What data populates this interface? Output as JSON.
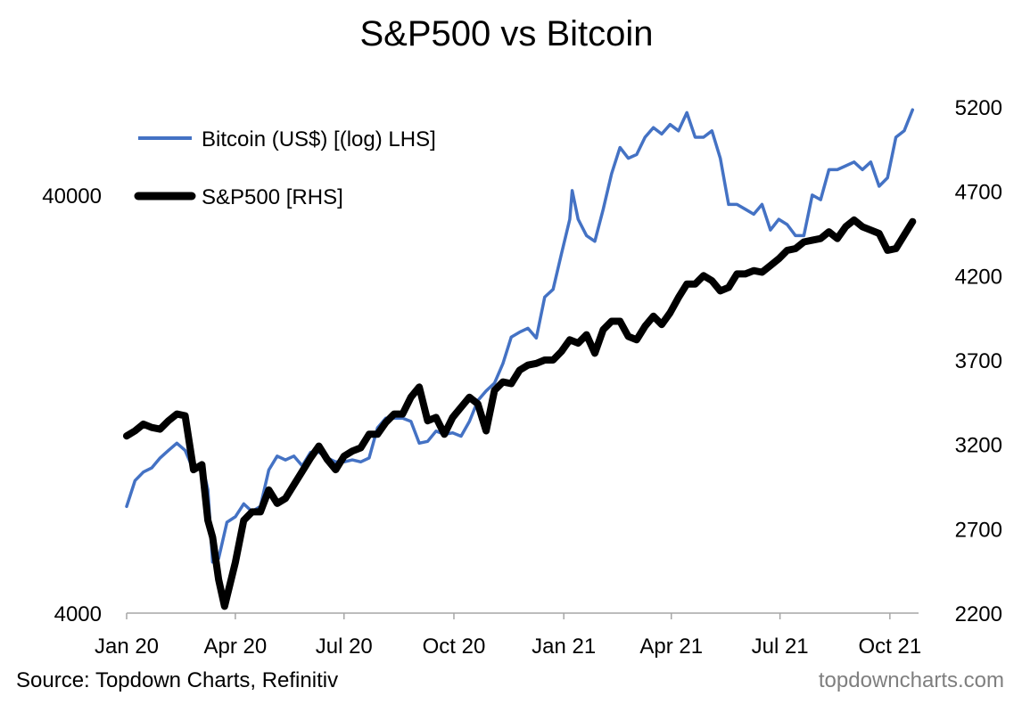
{
  "chart_data": {
    "type": "line",
    "title": "S&P500 vs Bitcoin",
    "source": "Source: Topdown Charts, Refinitiv",
    "watermark": "topdowncharts.com",
    "x_ticks": [
      "Jan 20",
      "Apr 20",
      "Jul 20",
      "Oct 20",
      "Jan 21",
      "Apr 21",
      "Jul 21",
      "Oct 21"
    ],
    "y_left": {
      "scale": "log",
      "ylim": [
        4000,
        65000
      ],
      "ticks": [
        4000,
        40000
      ]
    },
    "y_right": {
      "scale": "linear",
      "ylim": [
        2200,
        5200
      ],
      "ticks": [
        2200,
        2700,
        3200,
        3700,
        4200,
        4700,
        5200
      ]
    },
    "legend_position": "top-left",
    "grid": false,
    "series": [
      {
        "name": "Bitcoin (US$) [(log) LHS]",
        "axis": "left",
        "color": "#4472c4",
        "x": [
          "2020-01-01",
          "2020-01-08",
          "2020-01-15",
          "2020-01-22",
          "2020-01-29",
          "2020-02-05",
          "2020-02-12",
          "2020-02-19",
          "2020-02-26",
          "2020-03-04",
          "2020-03-09",
          "2020-03-13",
          "2020-03-18",
          "2020-03-25",
          "2020-04-01",
          "2020-04-08",
          "2020-04-15",
          "2020-04-22",
          "2020-04-29",
          "2020-05-06",
          "2020-05-13",
          "2020-05-20",
          "2020-05-27",
          "2020-06-03",
          "2020-06-10",
          "2020-06-17",
          "2020-06-24",
          "2020-07-01",
          "2020-07-08",
          "2020-07-15",
          "2020-07-22",
          "2020-07-29",
          "2020-08-05",
          "2020-08-12",
          "2020-08-19",
          "2020-08-26",
          "2020-09-02",
          "2020-09-09",
          "2020-09-16",
          "2020-09-23",
          "2020-09-30",
          "2020-10-07",
          "2020-10-14",
          "2020-10-21",
          "2020-10-28",
          "2020-11-04",
          "2020-11-11",
          "2020-11-18",
          "2020-11-25",
          "2020-12-02",
          "2020-12-09",
          "2020-12-16",
          "2020-12-23",
          "2020-12-30",
          "2021-01-06",
          "2021-01-08",
          "2021-01-13",
          "2021-01-20",
          "2021-01-27",
          "2021-02-03",
          "2021-02-10",
          "2021-02-17",
          "2021-02-24",
          "2021-03-03",
          "2021-03-10",
          "2021-03-17",
          "2021-03-24",
          "2021-03-31",
          "2021-04-07",
          "2021-04-14",
          "2021-04-21",
          "2021-04-28",
          "2021-05-05",
          "2021-05-12",
          "2021-05-19",
          "2021-05-26",
          "2021-06-02",
          "2021-06-09",
          "2021-06-16",
          "2021-06-23",
          "2021-06-30",
          "2021-07-07",
          "2021-07-14",
          "2021-07-21",
          "2021-07-28",
          "2021-08-04",
          "2021-08-11",
          "2021-08-18",
          "2021-08-25",
          "2021-09-01",
          "2021-09-08",
          "2021-09-15",
          "2021-09-22",
          "2021-09-29",
          "2021-10-06",
          "2021-10-13",
          "2021-10-20"
        ],
        "y": [
          7200,
          8300,
          8700,
          8900,
          9400,
          9800,
          10200,
          9800,
          8800,
          9100,
          7900,
          5300,
          5400,
          6600,
          6800,
          7300,
          7000,
          7200,
          8800,
          9500,
          9300,
          9500,
          9000,
          9700,
          9700,
          9400,
          9200,
          9200,
          9300,
          9200,
          9400,
          11100,
          11700,
          11700,
          11700,
          11500,
          10200,
          10300,
          10900,
          10700,
          10800,
          10600,
          11500,
          12900,
          13600,
          14200,
          15800,
          18300,
          18800,
          19200,
          18200,
          22800,
          23800,
          28900,
          35000,
          41000,
          35000,
          32000,
          31000,
          37000,
          45000,
          52000,
          49000,
          50000,
          55000,
          58000,
          56000,
          59000,
          57000,
          63000,
          55000,
          55000,
          57000,
          49000,
          38000,
          38000,
          37000,
          36000,
          38000,
          33000,
          35000,
          34000,
          32000,
          32000,
          40000,
          39000,
          46000,
          46000,
          47000,
          48000,
          46000,
          48000,
          42000,
          44000,
          55000,
          57000,
          64000
        ]
      },
      {
        "name": "S&P500 [RHS]",
        "axis": "right",
        "color": "#000000",
        "x": [
          "2020-01-01",
          "2020-01-08",
          "2020-01-15",
          "2020-01-22",
          "2020-01-29",
          "2020-02-05",
          "2020-02-12",
          "2020-02-19",
          "2020-02-26",
          "2020-03-04",
          "2020-03-09",
          "2020-03-13",
          "2020-03-18",
          "2020-03-23",
          "2020-04-01",
          "2020-04-08",
          "2020-04-15",
          "2020-04-22",
          "2020-04-29",
          "2020-05-06",
          "2020-05-13",
          "2020-05-20",
          "2020-05-27",
          "2020-06-03",
          "2020-06-10",
          "2020-06-17",
          "2020-06-24",
          "2020-07-01",
          "2020-07-08",
          "2020-07-15",
          "2020-07-22",
          "2020-07-29",
          "2020-08-05",
          "2020-08-12",
          "2020-08-19",
          "2020-08-26",
          "2020-09-02",
          "2020-09-09",
          "2020-09-16",
          "2020-09-23",
          "2020-09-30",
          "2020-10-07",
          "2020-10-14",
          "2020-10-21",
          "2020-10-28",
          "2020-11-04",
          "2020-11-11",
          "2020-11-18",
          "2020-11-25",
          "2020-12-02",
          "2020-12-09",
          "2020-12-16",
          "2020-12-23",
          "2020-12-30",
          "2021-01-06",
          "2021-01-13",
          "2021-01-20",
          "2021-01-27",
          "2021-02-03",
          "2021-02-10",
          "2021-02-17",
          "2021-02-24",
          "2021-03-03",
          "2021-03-10",
          "2021-03-17",
          "2021-03-24",
          "2021-03-31",
          "2021-04-07",
          "2021-04-14",
          "2021-04-21",
          "2021-04-28",
          "2021-05-05",
          "2021-05-12",
          "2021-05-19",
          "2021-05-26",
          "2021-06-02",
          "2021-06-09",
          "2021-06-16",
          "2021-06-23",
          "2021-06-30",
          "2021-07-07",
          "2021-07-14",
          "2021-07-21",
          "2021-07-28",
          "2021-08-04",
          "2021-08-11",
          "2021-08-18",
          "2021-08-25",
          "2021-09-01",
          "2021-09-08",
          "2021-09-15",
          "2021-09-22",
          "2021-09-29",
          "2021-10-06",
          "2021-10-13",
          "2021-10-20"
        ],
        "y": [
          3250,
          3280,
          3320,
          3300,
          3290,
          3340,
          3380,
          3370,
          3050,
          3080,
          2750,
          2650,
          2400,
          2240,
          2500,
          2750,
          2800,
          2800,
          2930,
          2850,
          2880,
          2960,
          3040,
          3120,
          3190,
          3110,
          3050,
          3130,
          3160,
          3180,
          3260,
          3260,
          3330,
          3380,
          3380,
          3480,
          3540,
          3340,
          3360,
          3260,
          3360,
          3420,
          3480,
          3440,
          3280,
          3520,
          3570,
          3560,
          3640,
          3670,
          3680,
          3700,
          3700,
          3750,
          3820,
          3800,
          3850,
          3740,
          3880,
          3930,
          3930,
          3840,
          3820,
          3900,
          3960,
          3910,
          3980,
          4070,
          4150,
          4150,
          4200,
          4170,
          4110,
          4130,
          4210,
          4210,
          4230,
          4220,
          4260,
          4300,
          4350,
          4360,
          4400,
          4410,
          4420,
          4460,
          4420,
          4490,
          4530,
          4490,
          4470,
          4450,
          4350,
          4360,
          4440,
          4520
        ]
      }
    ]
  }
}
